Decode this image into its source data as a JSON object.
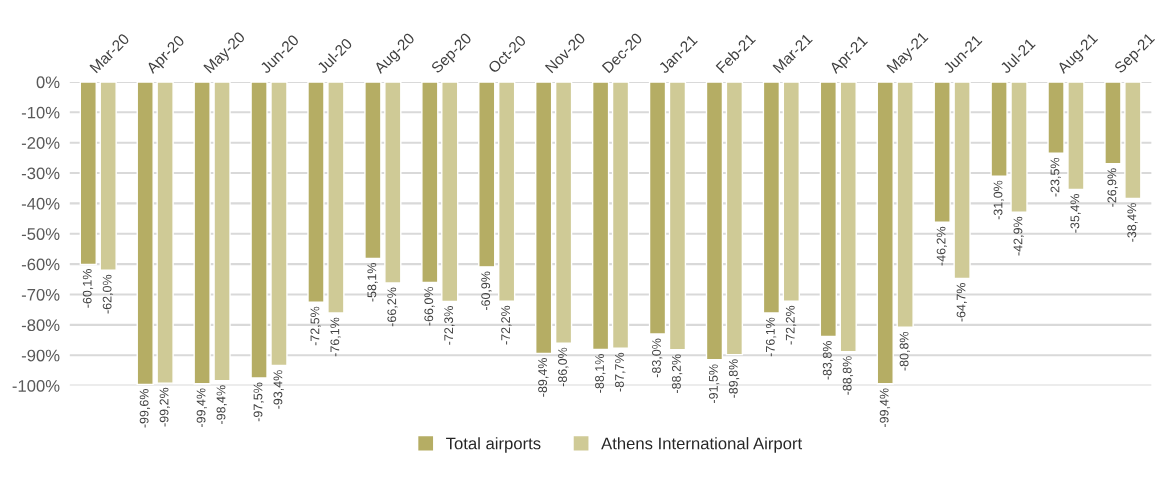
{
  "chart_data": {
    "type": "bar",
    "categories": [
      "Mar-20",
      "Apr-20",
      "May-20",
      "Jun-20",
      "Jul-20",
      "Aug-20",
      "Sep-20",
      "Oct-20",
      "Nov-20",
      "Dec-20",
      "Jan-21",
      "Feb-21",
      "Mar-21",
      "Apr-21",
      "May-21",
      "Jun-21",
      "Jul-21",
      "Aug-21",
      "Sep-21"
    ],
    "series": [
      {
        "name": "Total airports",
        "color": "#b5ad64",
        "values": [
          -60.1,
          -99.6,
          -99.4,
          -97.5,
          -72.5,
          -58.1,
          -66.0,
          -60.9,
          -89.4,
          -88.1,
          -83.0,
          -91.5,
          -76.1,
          -83.8,
          -99.4,
          -46.2,
          -31.0,
          -23.5,
          -26.9
        ],
        "value_labels": [
          "-60,1%",
          "-99,6%",
          "-99,4%",
          "-97,5%",
          "-72,5%",
          "-58,1%",
          "-66,0%",
          "-60,9%",
          "-89,4%",
          "-88,1%",
          "-83,0%",
          "-91,5%",
          "-76,1%",
          "-83,8%",
          "-99,4%",
          "-46,2%",
          "-31,0%",
          "-23,5%",
          "-26,9%"
        ]
      },
      {
        "name": "Athens International Airport",
        "color": "#cfca96",
        "values": [
          -62.0,
          -99.2,
          -98.4,
          -93.4,
          -76.1,
          -66.2,
          -72.3,
          -72.2,
          -86.0,
          -87.7,
          -88.2,
          -89.8,
          -72.2,
          -88.8,
          -80.8,
          -64.7,
          -42.9,
          -35.4,
          -38.4
        ],
        "value_labels": [
          "-62,0%",
          "-99,2%",
          "-98,4%",
          "-93,4%",
          "-76,1%",
          "-66,2%",
          "-72,3%",
          "-72,2%",
          "-86,0%",
          "-87,7%",
          "-88,2%",
          "-89,8%",
          "-72,2%",
          "-88,8%",
          "-80,8%",
          "-64,7%",
          "-42,9%",
          "-35,4%",
          "-38,4%"
        ]
      }
    ],
    "ylim": [
      -100,
      0
    ],
    "yticks": [
      {
        "value": 0,
        "label": "0%"
      },
      {
        "value": -10,
        "label": "-10%"
      },
      {
        "value": -20,
        "label": "-20%"
      },
      {
        "value": -30,
        "label": "-30%"
      },
      {
        "value": -40,
        "label": "-40%"
      },
      {
        "value": -50,
        "label": "-50%"
      },
      {
        "value": -60,
        "label": "-60%"
      },
      {
        "value": -70,
        "label": "-70%"
      },
      {
        "value": -80,
        "label": "-80%"
      },
      {
        "value": -90,
        "label": "-90%"
      },
      {
        "value": -100,
        "label": "-100%"
      }
    ],
    "grid": "y",
    "legend": "bottom"
  }
}
